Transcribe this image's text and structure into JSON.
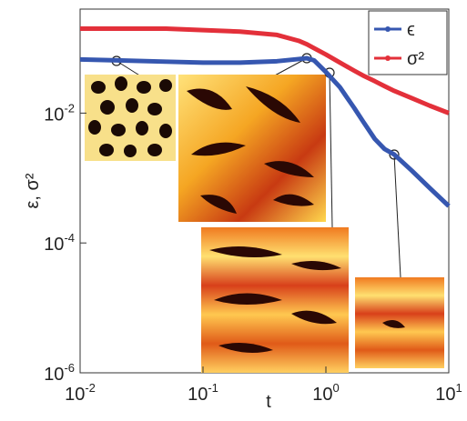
{
  "chart_data": {
    "type": "line",
    "xscale": "log",
    "yscale": "log",
    "xlabel": "t",
    "ylabel": "ε, σ²",
    "xlim": [
      0.01,
      10
    ],
    "ylim": [
      1e-06,
      0.4
    ],
    "xticks": [
      {
        "value": 0.01,
        "label": "10",
        "exponent": "-2"
      },
      {
        "value": 0.1,
        "label": "10",
        "exponent": "-1"
      },
      {
        "value": 1,
        "label": "10",
        "exponent": "0"
      },
      {
        "value": 10,
        "label": "10",
        "exponent": "1"
      }
    ],
    "yticks": [
      {
        "value": 0.01,
        "label": "10",
        "exponent": "-2"
      },
      {
        "value": 0.0001,
        "label": "10",
        "exponent": "-4"
      },
      {
        "value": 1e-06,
        "label": "10",
        "exponent": "-6"
      }
    ],
    "legend": "upper right",
    "x": [
      0.01,
      0.02,
      0.05,
      0.1,
      0.2,
      0.4,
      0.6,
      0.7,
      0.8,
      1,
      1.3,
      1.7,
      2,
      2.5,
      3,
      3.6,
      5,
      7,
      10
    ],
    "series": [
      {
        "name": "ϵ",
        "color": "#3657b0",
        "values": [
          0.067,
          0.065,
          0.062,
          0.06,
          0.06,
          0.063,
          0.068,
          0.07,
          0.065,
          0.043,
          0.025,
          0.012,
          0.0075,
          0.004,
          0.0028,
          0.0023,
          0.0013,
          0.0007,
          0.00037
        ]
      },
      {
        "name": "σ²",
        "color": "#e3303a",
        "values": [
          0.2,
          0.2,
          0.2,
          0.19,
          0.18,
          0.16,
          0.13,
          0.115,
          0.1,
          0.08,
          0.06,
          0.045,
          0.038,
          0.031,
          0.026,
          0.022,
          0.017,
          0.013,
          0.01
        ]
      }
    ]
  }
}
